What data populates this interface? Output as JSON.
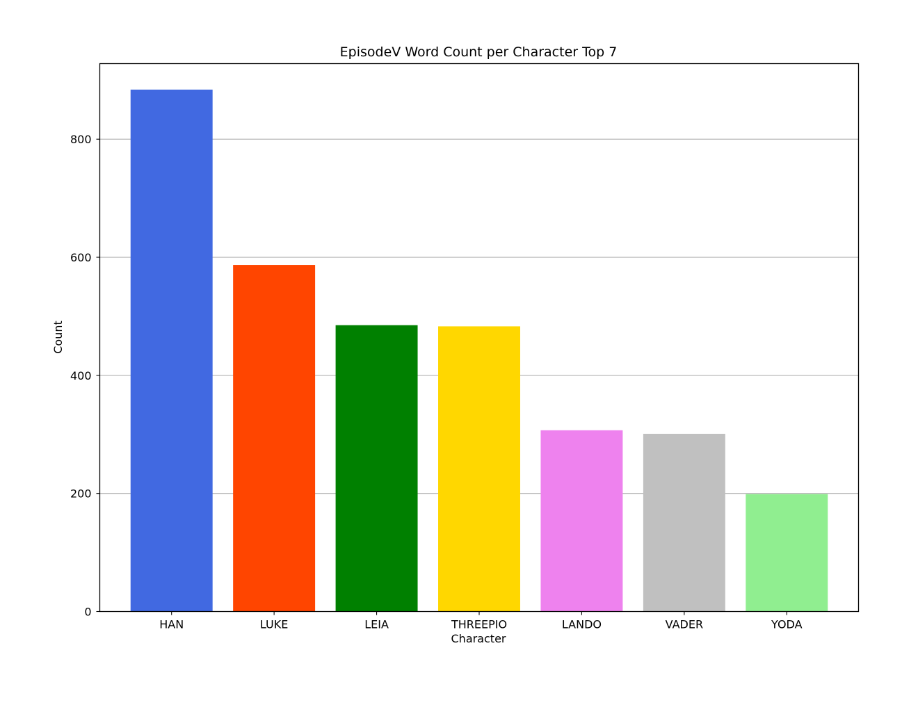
{
  "chart_data": {
    "type": "bar",
    "title": "EpisodeV Word Count per Character Top 7",
    "xlabel": "Character",
    "ylabel": "Count",
    "categories": [
      "HAN",
      "LUKE",
      "LEIA",
      "THREEPIO",
      "LANDO",
      "VADER",
      "YODA"
    ],
    "values": [
      884,
      587,
      485,
      483,
      307,
      301,
      199
    ],
    "colors": [
      "#4169e1",
      "#ff4500",
      "#008000",
      "#ffd700",
      "#ee82ee",
      "#c0c0c0",
      "#90ee90"
    ],
    "ylim": [
      0,
      928
    ],
    "yticks": [
      0,
      200,
      400,
      600,
      800
    ],
    "grid": "y"
  }
}
